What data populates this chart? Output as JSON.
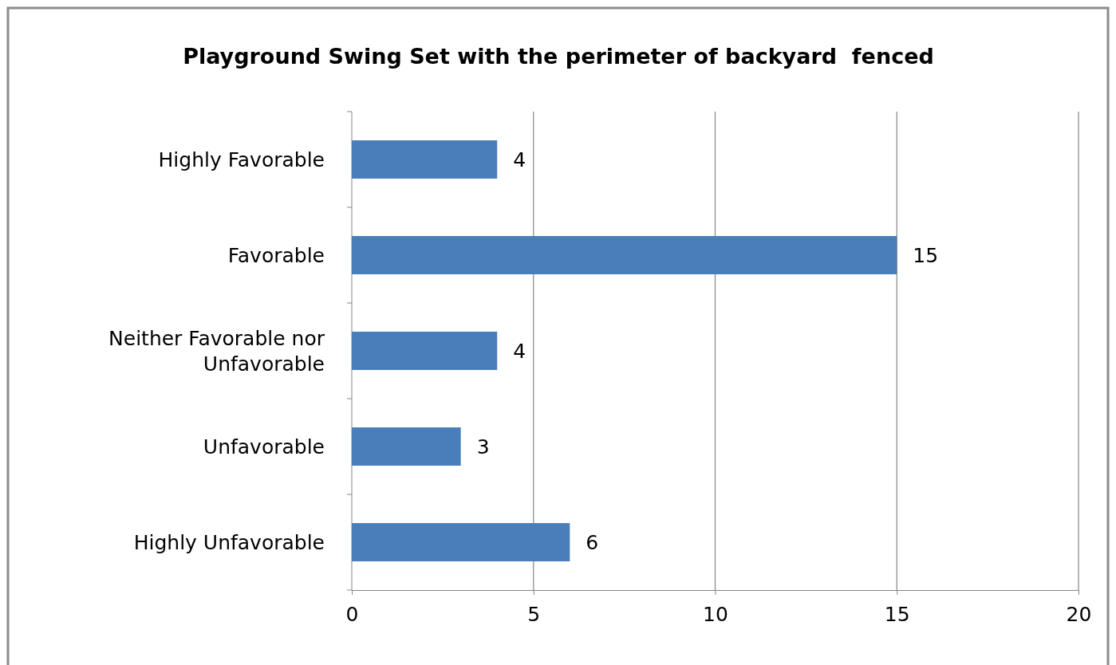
{
  "chart_data": {
    "type": "bar",
    "orientation": "horizontal",
    "title": "Playground Swing Set with the perimeter of backyard  fenced",
    "categories": [
      "Highly Favorable",
      "Favorable",
      "Neither Favorable nor Unfavorable",
      "Unfavorable",
      "Highly Unfavorable"
    ],
    "values": [
      4,
      15,
      4,
      3,
      6
    ],
    "color": "#4a7ebb",
    "data_labels": true,
    "xlim": [
      0,
      20
    ],
    "xticks": [
      0,
      5,
      10,
      15,
      20
    ],
    "grid": "x"
  }
}
